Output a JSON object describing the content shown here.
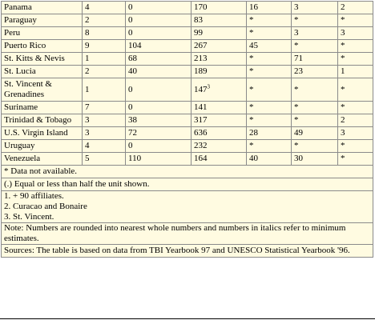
{
  "rows": [
    {
      "country": "Panama",
      "c1": "4",
      "c2": "0",
      "c3": "170",
      "c3_sup": "",
      "c4": "16",
      "c5": "3",
      "c6": "2"
    },
    {
      "country": "Paraguay",
      "c1": "2",
      "c2": "0",
      "c3": "83",
      "c3_sup": "",
      "c4": "*",
      "c5": "*",
      "c6": "*"
    },
    {
      "country": "Peru",
      "c1": "8",
      "c2": "0",
      "c3": "99",
      "c3_sup": "",
      "c4": "*",
      "c5": "3",
      "c6": "3"
    },
    {
      "country": "Puerto Rico",
      "c1": "9",
      "c2": "104",
      "c3": "267",
      "c3_sup": "",
      "c4": "45",
      "c5": "*",
      "c6": "*"
    },
    {
      "country": "St. Kitts & Nevis",
      "c1": "1",
      "c2": "68",
      "c3": "213",
      "c3_sup": "",
      "c4": "*",
      "c5": "71",
      "c6": "*"
    },
    {
      "country": "St. Lucia",
      "c1": "2",
      "c2": "40",
      "c3": "189",
      "c3_sup": "",
      "c4": "*",
      "c5": "23",
      "c6": "1"
    },
    {
      "country": "St. Vincent & Grenadines",
      "c1": "1",
      "c2": "0",
      "c3": "147",
      "c3_sup": "3",
      "c4": "*",
      "c5": "*",
      "c6": "*"
    },
    {
      "country": "Suriname",
      "c1": "7",
      "c2": "0",
      "c3": "141",
      "c3_sup": "",
      "c4": "*",
      "c5": "*",
      "c6": "*"
    },
    {
      "country": "Trinidad & Tobago",
      "c1": "3",
      "c2": "38",
      "c3": "317",
      "c3_sup": "",
      "c4": "*",
      "c5": "*",
      "c6": "2"
    },
    {
      "country": "U.S. Virgin Island",
      "c1": "3",
      "c2": "72",
      "c3": "636",
      "c3_sup": "",
      "c4": "28",
      "c5": "49",
      "c6": "3"
    },
    {
      "country": "Uruguay",
      "c1": "4",
      "c2": "0",
      "c3": "232",
      "c3_sup": "",
      "c4": "*",
      "c5": "*",
      "c6": "*"
    },
    {
      "country": "Venezuela",
      "c1": "5",
      "c2": "110",
      "c3": "164",
      "c3_sup": "",
      "c4": "40",
      "c5": "30",
      "c6": "*"
    }
  ],
  "notes": {
    "not_available": "* Data not available.",
    "equal_or_less": "(.) Equal or less than half the unit shown.",
    "footnote_1": "1. + 90 affiliates.",
    "footnote_2": "2. Curacao and Bonaire",
    "footnote_3": "3. St. Vincent.",
    "rounding": "Note: Numbers are rounded into nearest whole numbers and numbers in italics refer to minimum estimates.",
    "sources": "Sources: The table is based on data from TBI Yearbook 97 and UNESCO Statistical Yearbook '96."
  }
}
